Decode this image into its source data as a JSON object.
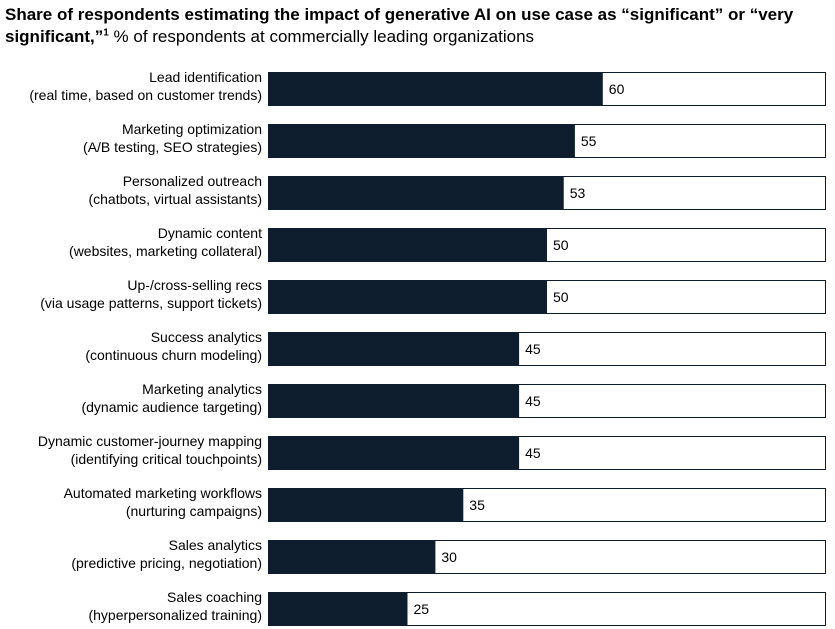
{
  "title": {
    "main": "Share of respondents estimating the impact of generative AI on use case as “significant” or “very significant,”",
    "footnote_marker": "1",
    "subtitle": "% of respondents at commercially leading organizations"
  },
  "colors": {
    "bar_fill": "#0f1e2e",
    "track_stroke": "#0f1e2e",
    "track_fill": "#ffffff"
  },
  "chart_data": {
    "type": "bar",
    "orientation": "horizontal",
    "categories": [
      [
        "Lead identification",
        "(real time, based on customer trends)"
      ],
      [
        "Marketing optimization",
        "(A/B testing, SEO strategies)"
      ],
      [
        "Personalized outreach",
        "(chatbots, virtual assistants)"
      ],
      [
        "Dynamic content",
        "(websites, marketing collateral)"
      ],
      [
        "Up-/cross-selling recs",
        "(via usage patterns, support tickets)"
      ],
      [
        "Success analytics",
        "(continuous churn modeling)"
      ],
      [
        "Marketing analytics",
        "(dynamic audience targeting)"
      ],
      [
        "Dynamic customer-journey mapping",
        "(identifying critical touchpoints)"
      ],
      [
        "Automated marketing workflows",
        "(nurturing campaigns)"
      ],
      [
        "Sales analytics",
        "(predictive pricing, negotiation)"
      ],
      [
        "Sales coaching",
        "(hyperpersonalized training)"
      ]
    ],
    "values": [
      60,
      55,
      53,
      50,
      50,
      45,
      45,
      45,
      35,
      30,
      25
    ],
    "xlim": [
      0,
      100
    ],
    "grid": false,
    "legend": "none",
    "data_labels": true
  }
}
